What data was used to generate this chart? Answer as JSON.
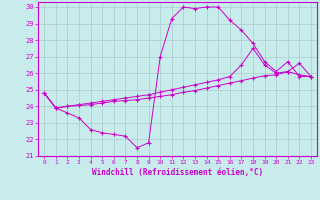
{
  "xlabel": "Windchill (Refroidissement éolien,°C)",
  "bg_color": "#c8ecec",
  "line_color": "#cc00cc",
  "grid_color": "#aacccc",
  "xlim": [
    -0.5,
    23.5
  ],
  "ylim": [
    21,
    30.3
  ],
  "yticks": [
    21,
    22,
    23,
    24,
    25,
    26,
    27,
    28,
    29,
    30
  ],
  "xticks": [
    0,
    1,
    2,
    3,
    4,
    5,
    6,
    7,
    8,
    9,
    10,
    11,
    12,
    13,
    14,
    15,
    16,
    17,
    18,
    19,
    20,
    21,
    22,
    23
  ],
  "series1": [
    [
      0,
      24.8
    ],
    [
      1,
      23.9
    ],
    [
      2,
      23.6
    ],
    [
      3,
      23.3
    ],
    [
      4,
      22.6
    ],
    [
      5,
      22.4
    ],
    [
      6,
      22.3
    ],
    [
      7,
      22.2
    ],
    [
      8,
      21.5
    ],
    [
      9,
      21.8
    ],
    [
      10,
      27.0
    ],
    [
      11,
      29.3
    ],
    [
      12,
      30.0
    ],
    [
      13,
      29.9
    ],
    [
      14,
      30.0
    ],
    [
      15,
      30.0
    ],
    [
      16,
      29.2
    ],
    [
      17,
      28.6
    ],
    [
      18,
      27.8
    ],
    [
      19,
      26.7
    ],
    [
      20,
      26.1
    ],
    [
      21,
      26.7
    ],
    [
      22,
      25.8
    ],
    [
      23,
      25.8
    ]
  ],
  "series2": [
    [
      0,
      24.8
    ],
    [
      1,
      23.9
    ],
    [
      2,
      24.0
    ],
    [
      3,
      24.1
    ],
    [
      4,
      24.2
    ],
    [
      5,
      24.3
    ],
    [
      6,
      24.4
    ],
    [
      7,
      24.5
    ],
    [
      8,
      24.6
    ],
    [
      9,
      24.7
    ],
    [
      10,
      24.85
    ],
    [
      11,
      25.0
    ],
    [
      12,
      25.15
    ],
    [
      13,
      25.3
    ],
    [
      14,
      25.45
    ],
    [
      15,
      25.6
    ],
    [
      16,
      25.8
    ],
    [
      17,
      26.5
    ],
    [
      18,
      27.5
    ],
    [
      19,
      26.5
    ],
    [
      20,
      26.0
    ],
    [
      21,
      26.1
    ],
    [
      22,
      26.6
    ],
    [
      23,
      25.8
    ]
  ],
  "series3": [
    [
      0,
      24.8
    ],
    [
      1,
      23.9
    ],
    [
      2,
      24.0
    ],
    [
      3,
      24.05
    ],
    [
      4,
      24.1
    ],
    [
      5,
      24.2
    ],
    [
      6,
      24.3
    ],
    [
      7,
      24.35
    ],
    [
      8,
      24.4
    ],
    [
      9,
      24.5
    ],
    [
      10,
      24.6
    ],
    [
      11,
      24.7
    ],
    [
      12,
      24.85
    ],
    [
      13,
      24.95
    ],
    [
      14,
      25.1
    ],
    [
      15,
      25.25
    ],
    [
      16,
      25.4
    ],
    [
      17,
      25.55
    ],
    [
      18,
      25.7
    ],
    [
      19,
      25.85
    ],
    [
      20,
      25.9
    ],
    [
      21,
      26.1
    ],
    [
      22,
      25.9
    ],
    [
      23,
      25.8
    ]
  ]
}
